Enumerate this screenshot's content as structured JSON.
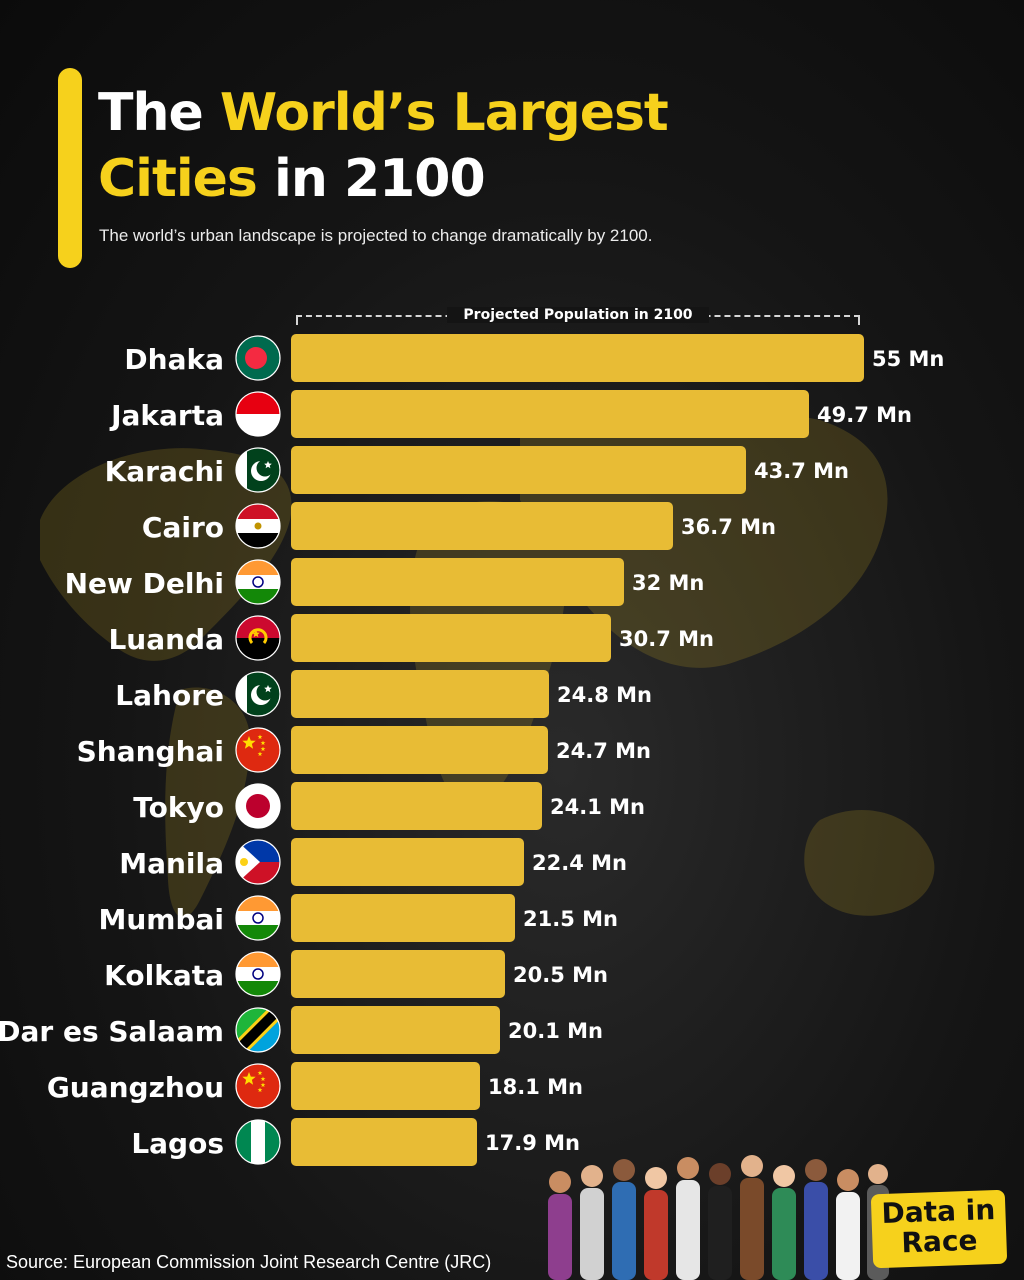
{
  "header": {
    "title_part1": "The ",
    "title_part2": "World’s Largest",
    "title_part3": "Cities",
    "title_part4": " in 2100",
    "subtitle": "The world’s urban landscape is projected to change dramatically by 2100."
  },
  "colors": {
    "accent": "#f6d11c",
    "bar": "#e8bc35",
    "background": "#151515"
  },
  "chart_data": {
    "type": "bar",
    "orientation": "horizontal",
    "title": "The World’s Largest Cities in 2100",
    "xlabel": "Projected Population in 2100",
    "unit": "Mn",
    "categories": [
      "Dhaka",
      "Jakarta",
      "Karachi",
      "Cairo",
      "New Delhi",
      "Luanda",
      "Lahore",
      "Shanghai",
      "Tokyo",
      "Manila",
      "Mumbai",
      "Kolkata",
      "Dar es Salaam",
      "Guangzhou",
      "Lagos"
    ],
    "values": [
      55,
      49.7,
      43.7,
      36.7,
      32,
      30.7,
      24.8,
      24.7,
      24.1,
      22.4,
      21.5,
      20.5,
      20.1,
      18.1,
      17.9
    ],
    "value_labels": [
      "55 Mn",
      "49.7 Mn",
      "43.7 Mn",
      "36.7 Mn",
      "32 Mn",
      "30.7 Mn",
      "24.8 Mn",
      "24.7 Mn",
      "24.1 Mn",
      "22.4 Mn",
      "21.5 Mn",
      "20.5 Mn",
      "20.1 Mn",
      "18.1 Mn",
      "17.9 Mn"
    ],
    "flag_icons": [
      "bangladesh-flag-icon",
      "indonesia-flag-icon",
      "pakistan-flag-icon",
      "egypt-flag-icon",
      "india-flag-icon",
      "angola-flag-icon",
      "pakistan-flag-icon",
      "china-flag-icon",
      "japan-flag-icon",
      "philippines-flag-icon",
      "india-flag-icon",
      "india-flag-icon",
      "tanzania-flag-icon",
      "china-flag-icon",
      "nigeria-flag-icon"
    ],
    "xlim": [
      0,
      55
    ],
    "grid": false,
    "legend": "none"
  },
  "logo": {
    "line1": "Data in",
    "line2": "Race"
  },
  "footer": {
    "source": "Source: European Commission Joint Research Centre (JRC)"
  }
}
